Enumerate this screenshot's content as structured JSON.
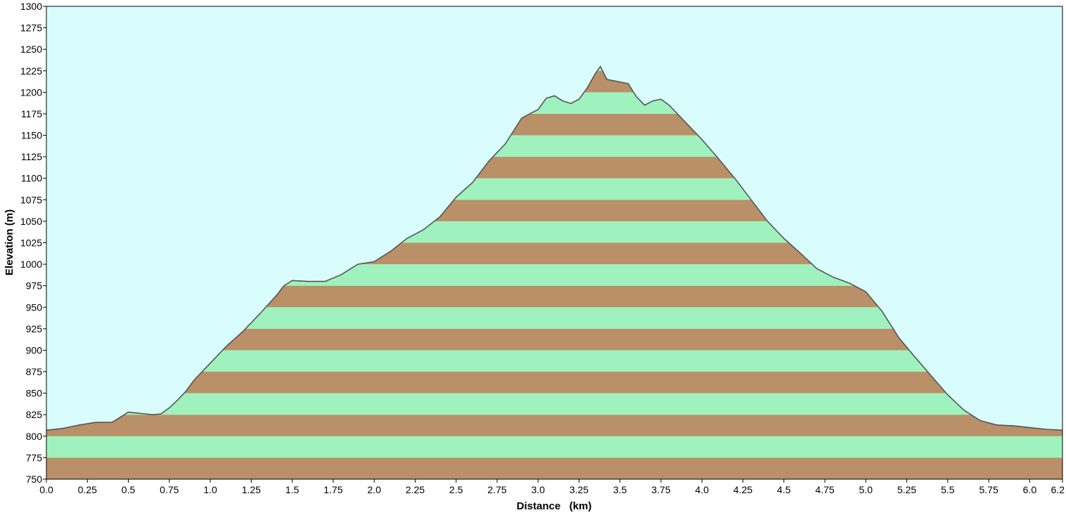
{
  "chart_data": {
    "type": "area",
    "title": "",
    "xlabel": "Distance   (km)",
    "ylabel": "Elevation (m)",
    "xlim": [
      0,
      6.2
    ],
    "ylim": [
      750,
      1300
    ],
    "x_ticks": [
      "0.0",
      "0.25",
      "0.5",
      "0.75",
      "1.0",
      "1.25",
      "1.5",
      "1.75",
      "2.0",
      "2.25",
      "2.5",
      "2.75",
      "3.0",
      "3.25",
      "3.5",
      "3.75",
      "4.0",
      "4.25",
      "4.5",
      "4.75",
      "5.0",
      "5.25",
      "5.5",
      "5.75",
      "6.0",
      "6.2"
    ],
    "y_ticks": [
      "750",
      "775",
      "800",
      "825",
      "850",
      "875",
      "900",
      "925",
      "950",
      "975",
      "1000",
      "1025",
      "1050",
      "1075",
      "1100",
      "1125",
      "1150",
      "1175",
      "1200",
      "1225",
      "1250",
      "1275",
      "1300"
    ],
    "band_interval": 25,
    "colors": {
      "background": "#d9fdfd",
      "band_light": "#9ff2bd",
      "band_dark": "#b99067",
      "line": "#555555"
    },
    "series": [
      {
        "x": [
          0,
          0.1,
          0.2,
          0.3,
          0.4,
          0.45,
          0.5,
          0.55,
          0.6,
          0.65,
          0.7,
          0.75,
          0.8,
          0.85,
          0.9,
          1.0,
          1.1,
          1.2,
          1.3,
          1.4,
          1.45,
          1.5,
          1.6,
          1.7,
          1.8,
          1.9,
          2.0,
          2.1,
          2.2,
          2.3,
          2.4,
          2.5,
          2.6,
          2.7,
          2.8,
          2.9,
          3.0,
          3.05,
          3.1,
          3.15,
          3.2,
          3.25,
          3.3,
          3.35,
          3.38,
          3.42,
          3.5,
          3.55,
          3.6,
          3.65,
          3.7,
          3.75,
          3.8,
          3.9,
          4.0,
          4.1,
          4.2,
          4.3,
          4.4,
          4.5,
          4.6,
          4.7,
          4.8,
          4.9,
          5.0,
          5.1,
          5.2,
          5.3,
          5.4,
          5.5,
          5.6,
          5.7,
          5.8,
          5.9,
          6.0,
          6.1,
          6.2
        ],
        "y": [
          807,
          809,
          813,
          816,
          816,
          822,
          828,
          827,
          826,
          825,
          826,
          833,
          842,
          852,
          865,
          885,
          905,
          922,
          942,
          963,
          975,
          981,
          980,
          980,
          988,
          1000,
          1003,
          1015,
          1030,
          1040,
          1055,
          1078,
          1095,
          1120,
          1140,
          1170,
          1180,
          1193,
          1196,
          1190,
          1187,
          1192,
          1205,
          1222,
          1230,
          1215,
          1212,
          1210,
          1195,
          1185,
          1190,
          1192,
          1185,
          1165,
          1145,
          1123,
          1100,
          1075,
          1050,
          1030,
          1013,
          995,
          985,
          978,
          968,
          945,
          915,
          892,
          870,
          848,
          830,
          818,
          813,
          812,
          810,
          808,
          807
        ]
      }
    ]
  }
}
